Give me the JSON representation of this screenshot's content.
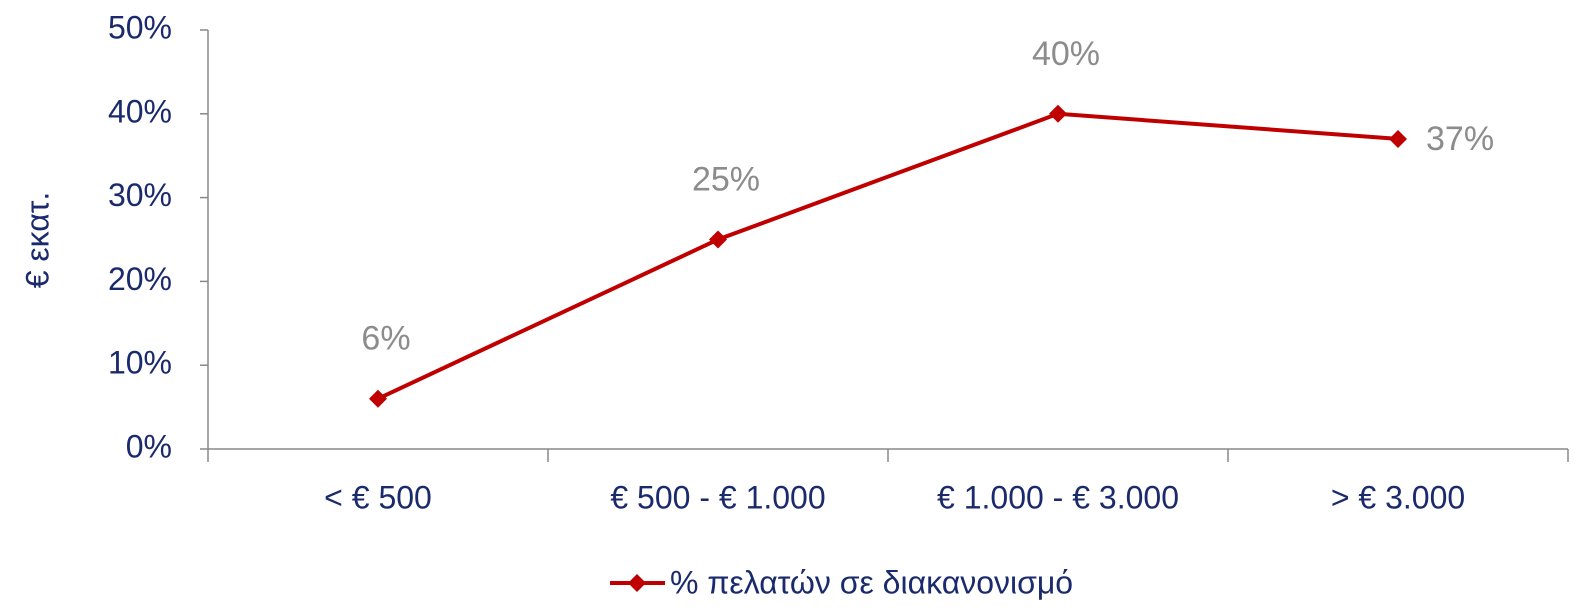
{
  "chart_data": {
    "type": "line",
    "y_label": "€ εκατ.",
    "categories": [
      "< € 500",
      "€ 500 - € 1.000",
      "€ 1.000 - € 3.000",
      "> € 3.000"
    ],
    "series": [
      {
        "name": "% πελατών σε διακανονισμό",
        "color": "#c00000",
        "values": [
          6,
          25,
          40,
          37
        ],
        "value_labels": [
          "6%",
          "25%",
          "40%",
          "37%"
        ]
      }
    ],
    "ylim": [
      0,
      50
    ],
    "yticks": [
      {
        "value": 0,
        "label": "0%"
      },
      {
        "value": 10,
        "label": "10%"
      },
      {
        "value": 20,
        "label": "20%"
      },
      {
        "value": 30,
        "label": "30%"
      },
      {
        "value": 40,
        "label": "40%"
      },
      {
        "value": 50,
        "label": "50%"
      }
    ],
    "legend": "bottom",
    "grid": false
  }
}
